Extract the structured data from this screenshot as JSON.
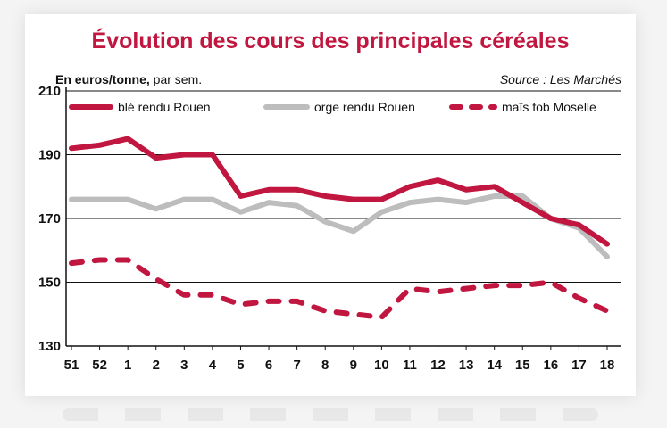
{
  "chart_data": {
    "type": "line",
    "title": "Évolution des cours des principales céréales",
    "subtitle_bold": "En euros/tonne,",
    "subtitle_normal": " par sem.",
    "source": "Source : Les Marchés",
    "ylim": [
      130,
      210
    ],
    "yticks": [
      "130",
      "150",
      "170",
      "190",
      "210"
    ],
    "grid": true,
    "legend_position": "top",
    "categories": [
      "51",
      "52",
      "1",
      "2",
      "3",
      "4",
      "5",
      "6",
      "7",
      "8",
      "9",
      "10",
      "11",
      "12",
      "13",
      "14",
      "15",
      "16",
      "17",
      "18"
    ],
    "series": [
      {
        "name": "blé rendu Rouen",
        "color": "#c0163f",
        "style": "solid",
        "values": [
          192,
          193,
          195,
          189,
          190,
          190,
          177,
          179,
          179,
          177,
          176,
          176,
          180,
          182,
          179,
          180,
          175,
          170,
          168,
          162
        ]
      },
      {
        "name": "orge rendu Rouen",
        "color": "#bdbdbd",
        "style": "solid",
        "values": [
          176,
          176,
          176,
          173,
          176,
          176,
          172,
          175,
          174,
          169,
          166,
          172,
          175,
          176,
          175,
          177,
          177,
          170,
          167,
          158
        ]
      },
      {
        "name": "maïs fob Moselle",
        "color": "#c0163f",
        "style": "dashed",
        "values": [
          156,
          157,
          157,
          151,
          146,
          146,
          143,
          144,
          144,
          141,
          140,
          139,
          148,
          147,
          148,
          149,
          149,
          150,
          145,
          141
        ]
      }
    ]
  },
  "colors": {
    "title": "#c0163f",
    "axis": "#111111",
    "grid": "#111111"
  }
}
